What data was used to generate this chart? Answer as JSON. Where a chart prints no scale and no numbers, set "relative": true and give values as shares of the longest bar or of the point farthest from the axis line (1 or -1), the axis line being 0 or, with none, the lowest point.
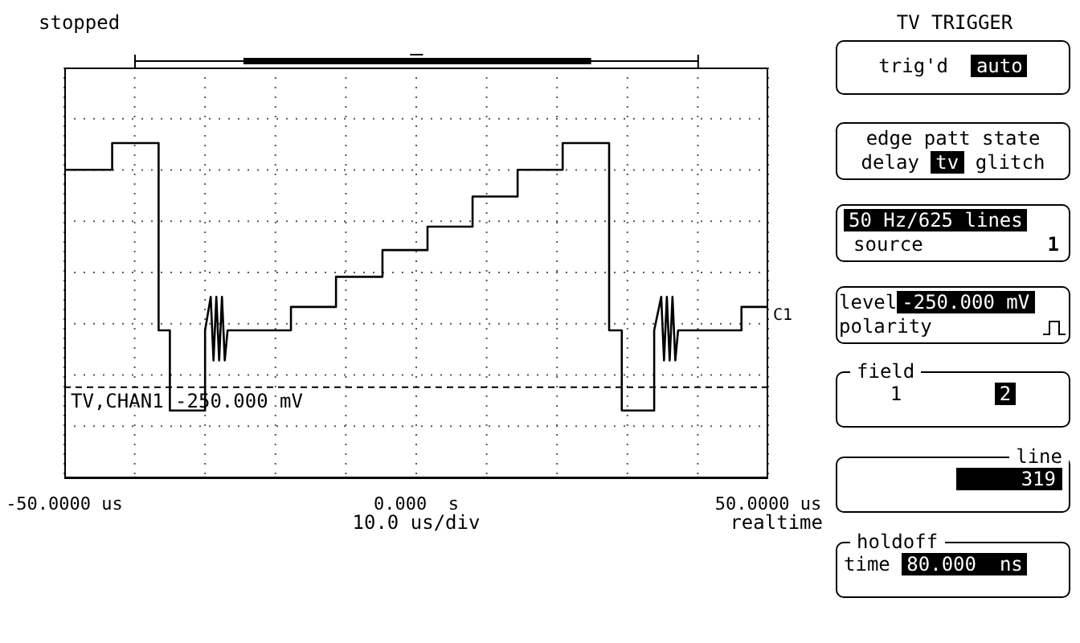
{
  "chart_data": [
    {
      "type": "line",
      "relative": true,
      "marker": "none",
      "line_style": "solid",
      "grid": true,
      "xlim": [
        -50,
        50
      ],
      "xticks": [
        {
          "value": -50,
          "label": "-50.0000 us"
        },
        {
          "value": -40,
          "label": null
        },
        {
          "value": -30,
          "label": null
        },
        {
          "value": -20,
          "label": null
        },
        {
          "value": -10,
          "label": null
        },
        {
          "value": 0,
          "label": "0.000  s"
        },
        {
          "value": 10,
          "label": null
        },
        {
          "value": 20,
          "label": null
        },
        {
          "value": 30,
          "label": null
        },
        {
          "value": 40,
          "label": null
        },
        {
          "value": 50,
          "label": "50.0000 us"
        }
      ],
      "series": [
        {
          "color": "#000000",
          "x": [
            -50,
            -43.2,
            -43.2,
            -36.6,
            -36.6,
            -35,
            -35,
            -30,
            -30,
            -29.2,
            -28.8,
            -28.4,
            -28,
            -27.6,
            -27.2,
            -26.8,
            -17.8,
            -17.8,
            -11.4,
            -11.4,
            -4.8,
            -4.8,
            1.6,
            1.6,
            8,
            8,
            14.4,
            14.4,
            20.8,
            20.8,
            27.4,
            27.4,
            29.2,
            29.2,
            33.8,
            33.8,
            34.8,
            35.2,
            35.6,
            36,
            36.4,
            36.8,
            37.2,
            46.2,
            46.2,
            50
          ],
          "values": [
            0.92,
            0.92,
            1,
            1,
            0.44,
            0.44,
            0.2,
            0.2,
            0.44,
            0.54,
            0.35,
            0.54,
            0.35,
            0.54,
            0.35,
            0.44,
            0.44,
            0.51,
            0.51,
            0.6,
            0.6,
            0.68,
            0.68,
            0.75,
            0.75,
            0.84,
            0.84,
            0.92,
            0.92,
            1,
            1,
            0.44,
            0.44,
            0.2,
            0.2,
            0.44,
            0.54,
            0.35,
            0.54,
            0.35,
            0.54,
            0.35,
            0.44,
            0.44,
            0.51,
            0.51
          ]
        }
      ],
      "ref_lines": [
        {
          "axis": "y",
          "value": 0.27,
          "label": "TV,CHAN1  -250.000 mV",
          "line_style": "dashed",
          "color": "#000000"
        }
      ],
      "annotations": [
        "stopped",
        "10.0 us/div",
        "realtime",
        "C1"
      ]
    },
    {
      "type": "other",
      "title": "TV TRIGGER",
      "annotations": [
        "trig'd",
        "auto",
        "edge patt state",
        "delay",
        "tv",
        "glitch",
        "50 Hz/625 lines",
        "source",
        "1",
        "level",
        "-250.000 mV",
        "polarity",
        "field",
        "1",
        "2",
        "line",
        "319",
        "holdoff",
        "time",
        "80.000  ns"
      ]
    }
  ]
}
